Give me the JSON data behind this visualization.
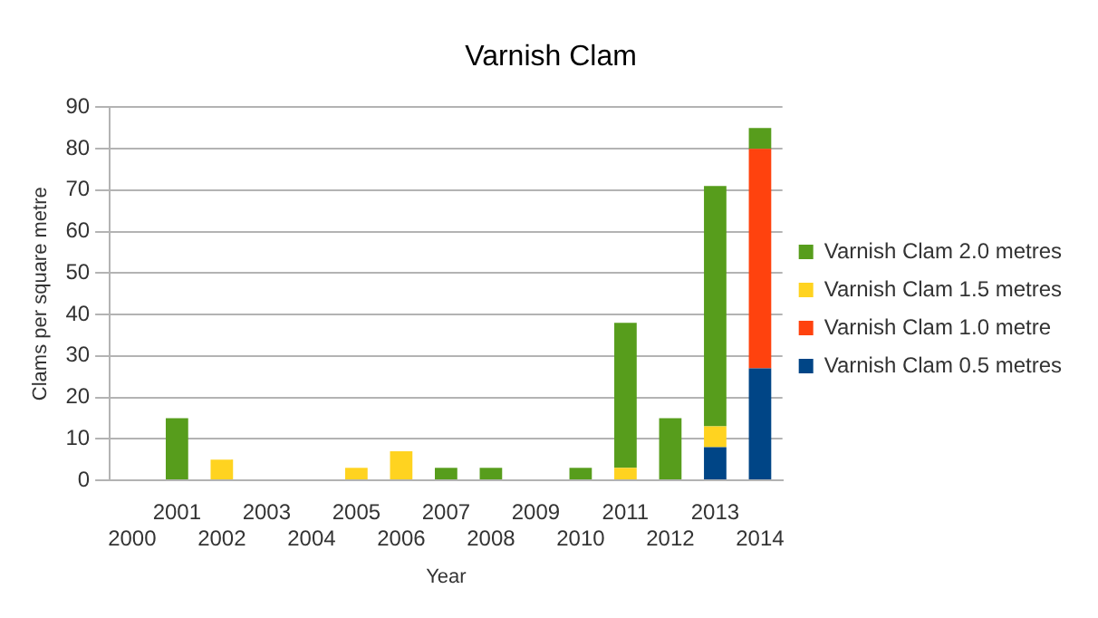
{
  "chart_data": {
    "type": "bar",
    "title": "Varnish Clam",
    "xlabel": "Year",
    "ylabel": "Clams per square metre",
    "categories": [
      "2000",
      "2001",
      "2002",
      "2003",
      "2004",
      "2005",
      "2006",
      "2007",
      "2008",
      "2009",
      "2010",
      "2011",
      "2012",
      "2013",
      "2014"
    ],
    "stacked": true,
    "series": [
      {
        "name": "Varnish Clam 0.5 metres",
        "color": "#004586",
        "values": [
          null,
          null,
          null,
          null,
          null,
          null,
          null,
          null,
          null,
          null,
          null,
          null,
          null,
          8,
          27
        ]
      },
      {
        "name": "Varnish Clam 1.0 metre",
        "color": "#ff420e",
        "values": [
          null,
          null,
          null,
          null,
          null,
          null,
          null,
          null,
          null,
          null,
          null,
          null,
          null,
          null,
          53
        ]
      },
      {
        "name": "Varnish Clam 1.5 metres",
        "color": "#ffd320",
        "values": [
          null,
          null,
          5,
          null,
          null,
          3,
          7,
          null,
          null,
          null,
          null,
          3,
          null,
          5,
          null
        ]
      },
      {
        "name": "Varnish Clam 2.0 metres",
        "color": "#579d1c",
        "values": [
          null,
          15,
          null,
          null,
          null,
          null,
          null,
          3,
          3,
          null,
          3,
          35,
          15,
          58,
          5
        ]
      }
    ],
    "ylim": [
      0,
      90
    ],
    "yticks": [
      0,
      10,
      20,
      30,
      40,
      50,
      60,
      70,
      80,
      90
    ],
    "grid": "y",
    "legend": "right"
  }
}
